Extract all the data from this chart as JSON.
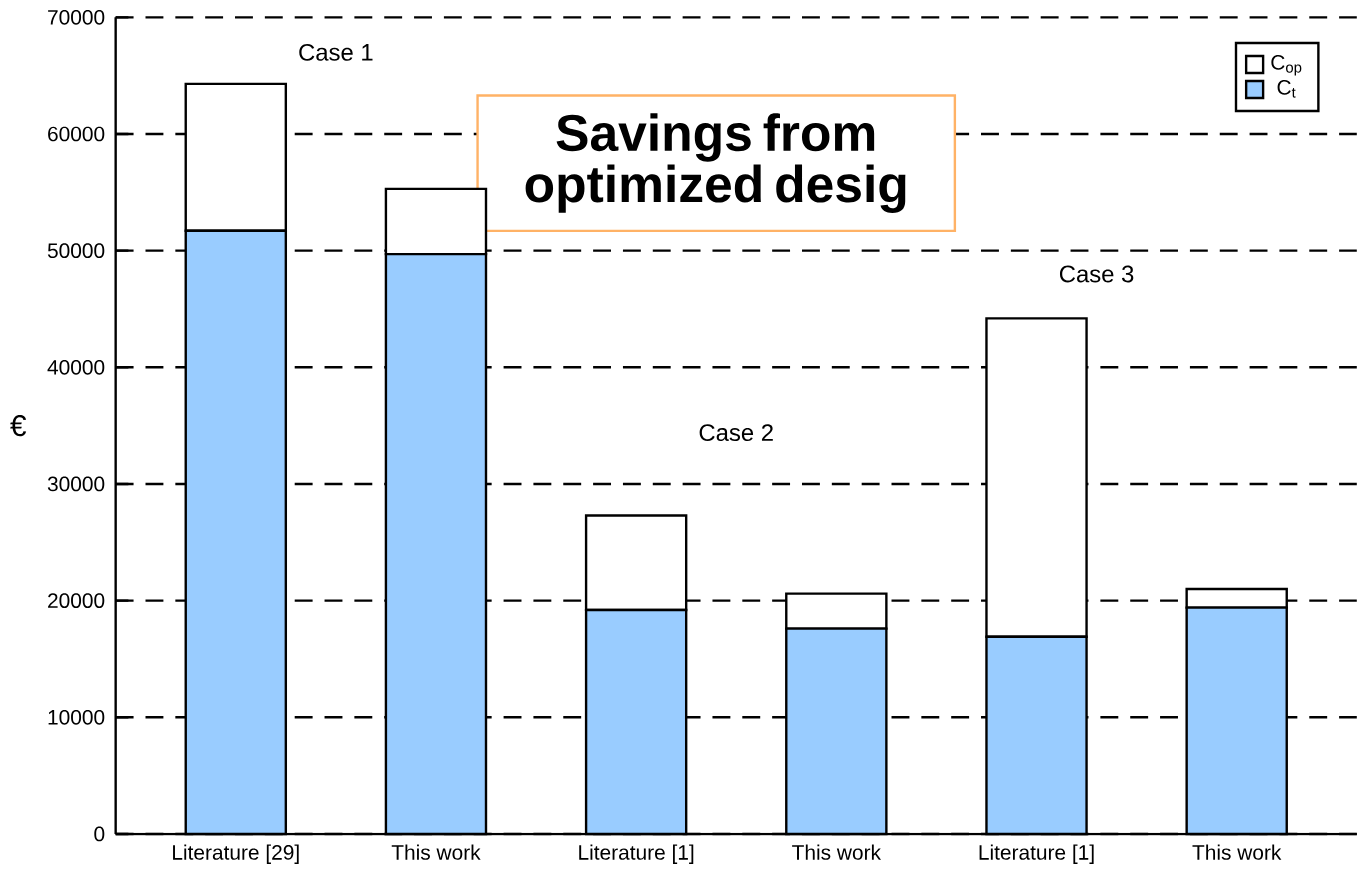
{
  "chart_data": {
    "type": "bar",
    "stacked": true,
    "ylabel": "€",
    "categories": [
      "Literature [29]",
      "This work",
      "Literature [1]",
      "This work",
      "Literature [1]",
      "This work"
    ],
    "series": [
      {
        "name": "C$_{t}$",
        "color": "#99ccff",
        "values": [
          51700,
          49700,
          19200,
          17600,
          16900,
          19400
        ]
      },
      {
        "name": "C$_{op}$",
        "color": "#ffffff",
        "values": [
          12600,
          5600,
          8100,
          3000,
          27300,
          1600
        ]
      }
    ],
    "ylim": [
      0,
      70000
    ],
    "yticks": [
      0,
      10000,
      20000,
      30000,
      40000,
      50000,
      60000,
      70000
    ],
    "grid": "y",
    "legend": "top right",
    "annotations": [
      "Case 1",
      "Case 2",
      "Case 3",
      "Savings from optimized desig"
    ]
  }
}
